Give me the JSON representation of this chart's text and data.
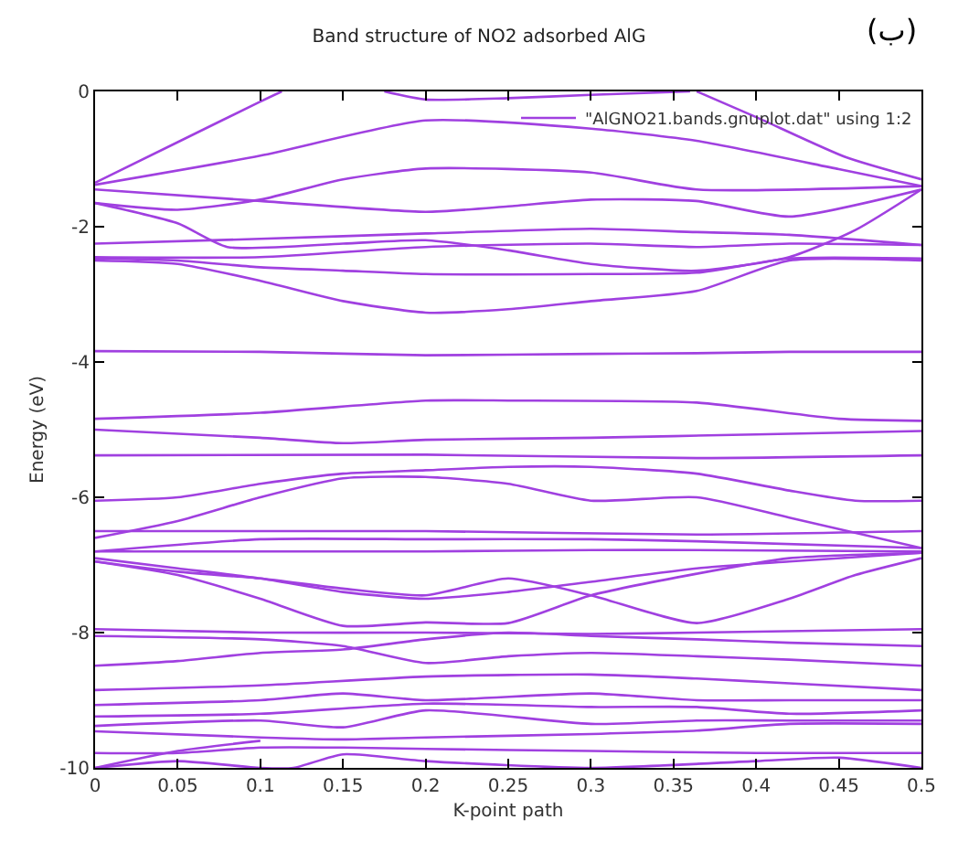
{
  "chart_data": {
    "type": "line",
    "title": "Band structure of NO2 adsorbed AlG",
    "xlabel": "K-point path",
    "ylabel": "Energy (eV)",
    "annotations": [
      "(ب)"
    ],
    "xlim": [
      0,
      0.5
    ],
    "xticks": [
      0,
      0.05,
      0.1,
      0.15,
      0.2,
      0.25,
      0.3,
      0.35,
      0.4,
      0.45,
      0.5
    ],
    "ylim": [
      -10,
      0
    ],
    "yticks": [
      -10,
      -8,
      -6,
      -4,
      -2,
      0
    ],
    "grid": false,
    "legend": "top right",
    "marker": "none",
    "line_style": "solid",
    "series": [
      {
        "name": "\"AlGNO21.bands.gnuplot.dat\" using 1:2",
        "color": "#a040e0",
        "x": [
          0,
          0.05,
          0.1,
          0.113,
          null,
          0.175,
          0.2,
          0.25,
          0.3,
          0.36,
          null,
          0.364,
          0.4,
          0.454,
          0.5,
          null,
          0,
          0.1,
          0.2,
          0.3,
          0.364,
          0.45,
          0.5,
          null,
          0,
          0.1,
          0.2,
          0.25,
          0.3,
          0.364,
          0.42,
          0.5,
          null,
          0,
          0.05,
          0.1,
          0.15,
          0.2,
          0.3,
          0.364,
          0.5,
          null,
          0,
          0.1,
          0.2,
          0.3,
          0.364,
          0.42,
          0.5,
          null,
          0,
          0.05,
          0.08,
          0.15,
          0.2,
          0.25,
          0.3,
          0.364,
          0.42,
          0.46,
          0.5,
          null,
          0,
          0.1,
          0.2,
          0.3,
          0.364,
          0.42,
          0.5,
          null,
          0,
          0.05,
          0.1,
          0.15,
          0.2,
          0.3,
          0.364,
          0.42,
          0.5,
          null,
          0,
          0.05,
          0.1,
          0.15,
          0.2,
          0.25,
          0.3,
          0.364,
          0.42,
          0.5,
          null,
          0,
          0.1,
          0.2,
          0.3,
          0.364,
          0.42,
          0.5,
          null,
          0,
          0.1,
          0.2,
          0.25,
          0.364,
          0.45,
          0.5,
          null,
          0,
          0.1,
          0.15,
          0.2,
          0.3,
          0.4,
          0.5,
          null,
          0,
          0.2,
          0.364,
          0.5,
          null,
          0,
          0.05,
          0.1,
          0.15,
          0.2,
          0.25,
          0.3,
          0.364,
          0.42,
          0.46,
          0.5,
          null,
          0,
          0.05,
          0.1,
          0.15,
          0.2,
          0.25,
          0.3,
          0.364,
          0.42,
          0.5,
          null,
          0,
          0.2,
          0.364,
          0.5,
          null,
          0,
          0.1,
          0.2,
          0.3,
          0.364,
          0.5,
          null,
          0,
          0.1,
          0.2,
          0.3,
          0.364,
          0.5,
          null,
          0,
          0.05,
          0.1,
          0.15,
          0.2,
          0.25,
          0.3,
          0.364,
          0.42,
          0.5,
          null,
          0,
          0.05,
          0.1,
          0.15,
          0.2,
          0.25,
          0.3,
          0.364,
          0.42,
          0.5,
          null,
          0,
          0.05,
          0.1,
          0.15,
          0.2,
          0.25,
          0.3,
          0.364,
          0.42,
          0.46,
          0.5,
          null,
          0,
          0.1,
          0.2,
          0.3,
          0.364,
          0.5,
          null,
          0,
          0.1,
          0.15,
          0.2,
          0.25,
          0.3,
          0.364,
          0.42,
          0.5,
          null,
          0,
          0.05,
          0.1,
          0.15,
          0.2,
          0.25,
          0.3,
          0.364,
          0.42,
          0.5,
          null,
          0,
          0.1,
          0.2,
          0.3,
          0.364,
          0.42,
          0.5,
          null,
          0,
          0.1,
          0.15,
          0.2,
          0.3,
          0.364,
          0.42,
          0.5,
          null,
          0,
          0.1,
          0.2,
          0.3,
          0.364,
          0.42,
          0.5,
          null,
          0,
          0.1,
          0.15,
          0.2,
          0.3,
          0.364,
          0.42,
          0.5,
          null,
          0,
          0.1,
          0.15,
          0.2,
          0.3,
          0.364,
          0.42,
          0.5,
          null,
          0,
          0.05,
          0.1,
          0.15,
          0.2,
          0.3,
          0.4,
          0.5,
          null,
          0,
          0.05,
          0.1,
          0.12,
          0.15,
          0.2,
          0.3,
          0.4,
          0.45,
          0.5,
          null,
          0,
          0.05,
          0.1
        ],
        "values": [
          -1.35,
          -0.75,
          -0.15,
          0,
          null,
          0,
          -0.12,
          -0.1,
          -0.05,
          0,
          null,
          0,
          -0.38,
          -0.97,
          -1.3,
          null,
          -1.38,
          -0.95,
          -0.43,
          -0.55,
          -0.73,
          -1.15,
          -1.4,
          null,
          -1.45,
          -1.62,
          -1.78,
          -1.7,
          -1.6,
          -1.62,
          -1.85,
          -1.45,
          null,
          -1.65,
          -1.75,
          -1.6,
          -1.3,
          -1.14,
          -1.2,
          -1.45,
          -1.4,
          null,
          -2.25,
          -2.18,
          -2.1,
          -2.03,
          -2.08,
          -2.12,
          -2.27,
          null,
          -1.65,
          -1.95,
          -2.3,
          -2.25,
          -2.2,
          -2.35,
          -2.55,
          -2.65,
          -2.45,
          -2.05,
          -1.45,
          null,
          -2.45,
          -2.45,
          -2.3,
          -2.25,
          -2.3,
          -2.25,
          -2.27,
          null,
          -2.47,
          -2.5,
          -2.6,
          -2.65,
          -2.7,
          -2.7,
          -2.68,
          -2.47,
          -2.47,
          null,
          -2.5,
          -2.55,
          -2.8,
          -3.1,
          -3.27,
          -3.22,
          -3.1,
          -2.95,
          -2.5,
          -2.5,
          null,
          -3.84,
          -3.85,
          -3.9,
          -3.88,
          -3.87,
          -3.85,
          -3.85,
          null,
          -4.84,
          -4.75,
          -4.57,
          -4.57,
          -4.6,
          -4.84,
          -4.87,
          null,
          -5.0,
          -5.12,
          -5.2,
          -5.15,
          -5.12,
          -5.07,
          -5.02,
          null,
          -5.38,
          -5.37,
          -5.42,
          -5.38,
          null,
          -6.05,
          -6.0,
          -5.8,
          -5.65,
          -5.6,
          -5.55,
          -5.55,
          -5.65,
          -5.9,
          -6.05,
          -6.05,
          null,
          -6.6,
          -6.35,
          -6.0,
          -5.72,
          -5.7,
          -5.8,
          -6.05,
          -6.0,
          -6.3,
          -6.75,
          null,
          -6.5,
          -6.5,
          -6.55,
          -6.5,
          null,
          -6.8,
          -6.62,
          -6.62,
          -6.62,
          -6.65,
          -6.75,
          null,
          -6.8,
          -6.8,
          -6.8,
          -6.78,
          -6.78,
          -6.8,
          null,
          -6.9,
          -7.05,
          -7.2,
          -7.4,
          -7.5,
          -7.4,
          -7.25,
          -7.05,
          -6.95,
          -6.82,
          null,
          -6.95,
          -7.15,
          -7.5,
          -7.9,
          -7.85,
          -7.86,
          -7.45,
          -7.13,
          -6.9,
          -6.82,
          null,
          -6.95,
          -7.1,
          -7.2,
          -7.35,
          -7.45,
          -7.2,
          -7.45,
          -7.86,
          -7.5,
          -7.15,
          -6.9,
          null,
          -7.95,
          -8.0,
          -8.0,
          -8.02,
          -8.0,
          -7.95,
          null,
          -8.05,
          -8.1,
          -8.2,
          -8.45,
          -8.35,
          -8.3,
          -8.35,
          -8.4,
          -8.49,
          null,
          -8.49,
          -8.42,
          -8.3,
          -8.25,
          -8.1,
          -8.0,
          -8.05,
          -8.1,
          -8.15,
          -8.2,
          null,
          -8.85,
          -8.78,
          -8.65,
          -8.62,
          -8.68,
          -8.75,
          -8.85,
          null,
          -9.07,
          -9.0,
          -8.9,
          -9.0,
          -8.9,
          -9.0,
          -9.0,
          -9.0,
          null,
          -9.24,
          -9.2,
          -9.05,
          -9.1,
          -9.1,
          -9.2,
          -9.15,
          null,
          -9.38,
          -9.3,
          -9.4,
          -9.15,
          -9.35,
          -9.3,
          -9.3,
          -9.3,
          null,
          -9.46,
          -9.55,
          -9.58,
          -9.55,
          -9.5,
          -9.45,
          -9.35,
          -9.35,
          null,
          -9.78,
          -9.78,
          -9.7,
          -9.7,
          -9.72,
          -9.75,
          -9.78,
          -9.78,
          null,
          -10,
          -9.9,
          -10,
          -10,
          -9.8,
          -9.9,
          -10,
          -9.9,
          -9.85,
          -10,
          null,
          -10,
          -9.75,
          -9.6
        ]
      }
    ]
  }
}
